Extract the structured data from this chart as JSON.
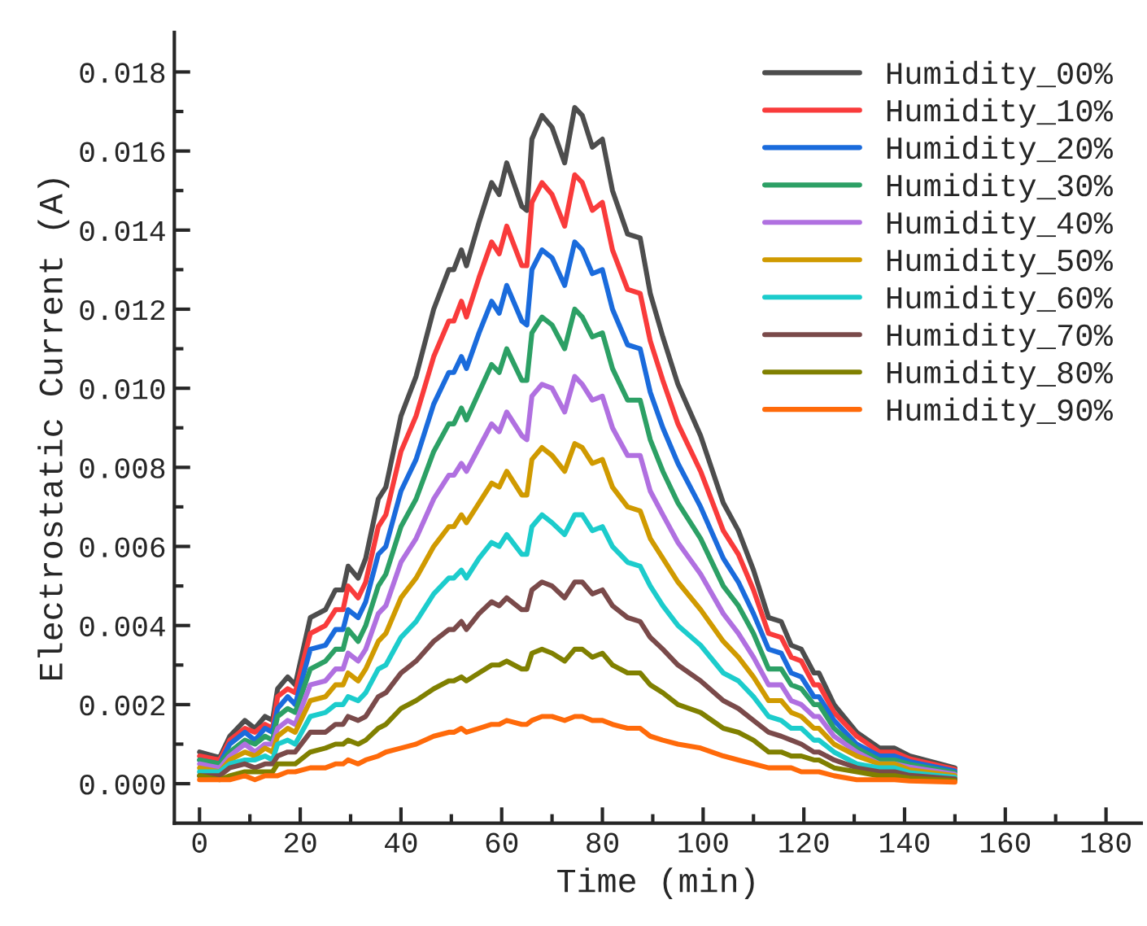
{
  "chart_data": {
    "type": "line",
    "xlabel": "Time (min)",
    "ylabel": "Electrostatic Current (A)",
    "x": [
      0,
      4,
      6,
      9,
      11,
      13,
      14.5,
      15.5,
      17.5,
      19,
      22,
      25,
      27,
      28.5,
      29.5,
      31.5,
      33,
      35.5,
      37,
      40,
      43,
      46.5,
      49.5,
      50.5,
      52,
      53,
      55.5,
      58,
      59.5,
      61,
      64,
      65,
      66,
      68,
      70,
      72.5,
      74.5,
      76,
      78,
      80,
      82,
      85,
      87.5,
      89.5,
      92,
      95,
      99.5,
      104,
      107,
      110,
      113,
      115.5,
      117.5,
      119.5,
      122,
      123,
      126,
      130.5,
      135,
      138,
      141,
      150
    ],
    "series": [
      {
        "name": "Humidity_00%",
        "color": "#4d4d4d",
        "values": [
          0.0008,
          0.00066,
          0.0012,
          0.0016,
          0.0014,
          0.0017,
          0.0016,
          0.0024,
          0.0027,
          0.0025,
          0.0042,
          0.0044,
          0.0049,
          0.0049,
          0.0055,
          0.0052,
          0.0057,
          0.0072,
          0.0075,
          0.0093,
          0.0103,
          0.012,
          0.013,
          0.013,
          0.0135,
          0.0131,
          0.0142,
          0.0152,
          0.0149,
          0.0157,
          0.0146,
          0.0145,
          0.0163,
          0.0169,
          0.0166,
          0.0157,
          0.0171,
          0.0169,
          0.0161,
          0.0163,
          0.015,
          0.0139,
          0.0138,
          0.0124,
          0.0113,
          0.0101,
          0.0088,
          0.0071,
          0.0064,
          0.0054,
          0.0042,
          0.0041,
          0.0035,
          0.0034,
          0.0028,
          0.0028,
          0.002,
          0.0013,
          0.0009,
          0.0009,
          0.0007,
          0.0004
        ]
      },
      {
        "name": "Humidity_10%",
        "color": "#f93b3b",
        "values": [
          0.0007,
          0.0006,
          0.0011,
          0.0014,
          0.0013,
          0.0015,
          0.0014,
          0.0022,
          0.0024,
          0.0023,
          0.0038,
          0.004,
          0.0044,
          0.0044,
          0.005,
          0.0047,
          0.0051,
          0.0065,
          0.0068,
          0.0084,
          0.0093,
          0.0108,
          0.0117,
          0.0117,
          0.0122,
          0.0118,
          0.0128,
          0.0137,
          0.0134,
          0.0141,
          0.0131,
          0.0131,
          0.0147,
          0.0152,
          0.0149,
          0.0141,
          0.0154,
          0.0152,
          0.0145,
          0.0147,
          0.0135,
          0.0125,
          0.0124,
          0.0112,
          0.0102,
          0.0091,
          0.0079,
          0.0064,
          0.0058,
          0.0049,
          0.0038,
          0.0037,
          0.0032,
          0.0031,
          0.0025,
          0.0025,
          0.0018,
          0.0012,
          0.0008,
          0.0008,
          0.00063,
          0.00036
        ]
      },
      {
        "name": "Humidity_20%",
        "color": "#1a6bdc",
        "values": [
          0.0006,
          0.0005,
          0.001,
          0.0013,
          0.0011,
          0.0014,
          0.0013,
          0.0019,
          0.0022,
          0.002,
          0.0034,
          0.0035,
          0.0039,
          0.0039,
          0.0044,
          0.0042,
          0.0046,
          0.0058,
          0.006,
          0.0074,
          0.0082,
          0.0096,
          0.0104,
          0.0104,
          0.0108,
          0.0105,
          0.0114,
          0.0122,
          0.0119,
          0.0126,
          0.0117,
          0.0116,
          0.013,
          0.0135,
          0.0133,
          0.0126,
          0.0137,
          0.0135,
          0.0129,
          0.013,
          0.012,
          0.0111,
          0.011,
          0.0099,
          0.009,
          0.0081,
          0.007,
          0.0057,
          0.0051,
          0.0043,
          0.0034,
          0.0033,
          0.0028,
          0.0027,
          0.0022,
          0.0022,
          0.0016,
          0.001,
          0.0007,
          0.0007,
          0.00056,
          0.00032
        ]
      },
      {
        "name": "Humidity_30%",
        "color": "#2ca065",
        "values": [
          0.0006,
          0.0005,
          0.0008,
          0.0011,
          0.001,
          0.0012,
          0.0011,
          0.0017,
          0.0019,
          0.0018,
          0.0029,
          0.0031,
          0.0034,
          0.0034,
          0.0039,
          0.0036,
          0.004,
          0.005,
          0.0053,
          0.0065,
          0.0072,
          0.0084,
          0.0091,
          0.0091,
          0.0095,
          0.0092,
          0.0099,
          0.0106,
          0.0104,
          0.011,
          0.0102,
          0.0102,
          0.0114,
          0.0118,
          0.0116,
          0.011,
          0.012,
          0.0118,
          0.0113,
          0.0114,
          0.0105,
          0.0097,
          0.0097,
          0.0087,
          0.0079,
          0.0071,
          0.0062,
          0.005,
          0.0045,
          0.0038,
          0.0029,
          0.0029,
          0.0025,
          0.0024,
          0.002,
          0.002,
          0.0014,
          0.0009,
          0.0006,
          0.0006,
          0.00049,
          0.00028
        ]
      },
      {
        "name": "Humidity_40%",
        "color": "#b070e0",
        "values": [
          0.0005,
          0.0004,
          0.0007,
          0.001,
          0.0008,
          0.001,
          0.001,
          0.0014,
          0.0016,
          0.0015,
          0.0025,
          0.0026,
          0.0029,
          0.0029,
          0.0033,
          0.0031,
          0.0034,
          0.0043,
          0.0045,
          0.0056,
          0.0062,
          0.0072,
          0.0078,
          0.0078,
          0.0081,
          0.0079,
          0.0085,
          0.0091,
          0.0089,
          0.0094,
          0.0088,
          0.0087,
          0.0098,
          0.0101,
          0.01,
          0.0094,
          0.0103,
          0.0101,
          0.0097,
          0.0098,
          0.009,
          0.0083,
          0.0083,
          0.0074,
          0.0068,
          0.0061,
          0.0053,
          0.0043,
          0.0038,
          0.0032,
          0.0025,
          0.0025,
          0.0021,
          0.002,
          0.0017,
          0.0017,
          0.0012,
          0.0008,
          0.0005,
          0.0005,
          0.00042,
          0.00024
        ]
      },
      {
        "name": "Humidity_50%",
        "color": "#d09a00",
        "values": [
          0.0004,
          0.0003,
          0.0006,
          0.0008,
          0.0007,
          0.0009,
          0.0008,
          0.0012,
          0.0014,
          0.0013,
          0.0021,
          0.0022,
          0.0025,
          0.0025,
          0.0028,
          0.0026,
          0.0029,
          0.0036,
          0.0038,
          0.0047,
          0.0052,
          0.006,
          0.0065,
          0.0065,
          0.0068,
          0.0066,
          0.0071,
          0.0076,
          0.0075,
          0.0079,
          0.0073,
          0.0073,
          0.0082,
          0.0085,
          0.0083,
          0.0079,
          0.0086,
          0.0085,
          0.0081,
          0.0082,
          0.0075,
          0.007,
          0.0069,
          0.0062,
          0.0057,
          0.0051,
          0.0044,
          0.0036,
          0.0032,
          0.0027,
          0.0021,
          0.0021,
          0.0018,
          0.0017,
          0.0014,
          0.0014,
          0.001,
          0.0007,
          0.0005,
          0.0005,
          0.00035,
          0.0002
        ]
      },
      {
        "name": "Humidity_60%",
        "color": "#1ccccc",
        "values": [
          0.0003,
          0.0003,
          0.0005,
          0.0006,
          0.0006,
          0.0007,
          0.0006,
          0.001,
          0.0011,
          0.001,
          0.0017,
          0.0018,
          0.002,
          0.002,
          0.0022,
          0.0021,
          0.0023,
          0.0029,
          0.003,
          0.0037,
          0.0041,
          0.0048,
          0.0052,
          0.0052,
          0.0054,
          0.0052,
          0.0057,
          0.0061,
          0.006,
          0.0063,
          0.0058,
          0.0058,
          0.0065,
          0.0068,
          0.0066,
          0.0063,
          0.0068,
          0.0068,
          0.0064,
          0.0065,
          0.006,
          0.0056,
          0.0055,
          0.005,
          0.0045,
          0.004,
          0.0035,
          0.0028,
          0.0026,
          0.0022,
          0.0017,
          0.0016,
          0.0014,
          0.0014,
          0.0011,
          0.0011,
          0.0008,
          0.0005,
          0.0004,
          0.0004,
          0.00028,
          0.00016
        ]
      },
      {
        "name": "Humidity_70%",
        "color": "#7a4a4a",
        "values": [
          0.0002,
          0.0002,
          0.0004,
          0.0005,
          0.0004,
          0.0005,
          0.0005,
          0.0007,
          0.0008,
          0.0008,
          0.0013,
          0.0013,
          0.0015,
          0.0015,
          0.0017,
          0.0016,
          0.0017,
          0.0022,
          0.0023,
          0.0028,
          0.0031,
          0.0036,
          0.0039,
          0.0039,
          0.0041,
          0.0039,
          0.0043,
          0.0046,
          0.0045,
          0.0047,
          0.0044,
          0.0044,
          0.0049,
          0.0051,
          0.005,
          0.0047,
          0.0051,
          0.0051,
          0.0048,
          0.0049,
          0.0045,
          0.0042,
          0.0041,
          0.0037,
          0.0034,
          0.003,
          0.0026,
          0.0021,
          0.0019,
          0.0016,
          0.0013,
          0.0012,
          0.0011,
          0.001,
          0.0008,
          0.0008,
          0.0006,
          0.0004,
          0.0003,
          0.0003,
          0.00021,
          0.00012
        ]
      },
      {
        "name": "Humidity_80%",
        "color": "#808000",
        "values": [
          0.0002,
          0.0001,
          0.0002,
          0.0003,
          0.0003,
          0.0003,
          0.0003,
          0.0005,
          0.0005,
          0.0005,
          0.0008,
          0.0009,
          0.001,
          0.001,
          0.0011,
          0.001,
          0.0011,
          0.0014,
          0.0015,
          0.0019,
          0.0021,
          0.0024,
          0.0026,
          0.0026,
          0.0027,
          0.0026,
          0.0028,
          0.003,
          0.003,
          0.0031,
          0.0029,
          0.0029,
          0.0033,
          0.0034,
          0.0033,
          0.0031,
          0.0034,
          0.0034,
          0.0032,
          0.0033,
          0.003,
          0.0028,
          0.0028,
          0.0025,
          0.0023,
          0.002,
          0.0018,
          0.0014,
          0.0013,
          0.0011,
          0.0008,
          0.0008,
          0.0007,
          0.0007,
          0.0006,
          0.0006,
          0.0004,
          0.0003,
          0.0002,
          0.0002,
          0.00014,
          8e-05
        ]
      },
      {
        "name": "Humidity_90%",
        "color": "#ff6a0a",
        "values": [
          0.0001,
          0.0001,
          0.0001,
          0.0002,
          0.0001,
          0.0002,
          0.0002,
          0.0002,
          0.0003,
          0.0003,
          0.0004,
          0.0004,
          0.0005,
          0.0005,
          0.0006,
          0.0005,
          0.0006,
          0.0007,
          0.0008,
          0.0009,
          0.001,
          0.0012,
          0.0013,
          0.0013,
          0.0014,
          0.0013,
          0.0014,
          0.0015,
          0.0015,
          0.0016,
          0.0015,
          0.0015,
          0.0016,
          0.0017,
          0.0017,
          0.0016,
          0.0017,
          0.0017,
          0.0016,
          0.0016,
          0.0015,
          0.0014,
          0.0014,
          0.0012,
          0.0011,
          0.001,
          0.0009,
          0.0007,
          0.0006,
          0.0005,
          0.0004,
          0.0004,
          0.0004,
          0.0003,
          0.0003,
          0.0003,
          0.0002,
          0.0001,
          0.0001,
          0.0001,
          7e-05,
          4e-05
        ]
      }
    ],
    "xlim": [
      -5,
      187
    ],
    "ylim": [
      -0.001,
      0.019
    ],
    "xticks": [
      0,
      {
        "value": 10,
        "label": null
      },
      20,
      {
        "value": 30,
        "label": null
      },
      40,
      {
        "value": 50,
        "label": null
      },
      60,
      {
        "value": 70,
        "label": null
      },
      80,
      {
        "value": 90,
        "label": null
      },
      100,
      {
        "value": 110,
        "label": null
      },
      120,
      {
        "value": 130,
        "label": null
      },
      140,
      {
        "value": 150,
        "label": null
      },
      160,
      {
        "value": 170,
        "label": null
      },
      180
    ],
    "yticks": [
      {
        "value": 0,
        "label": "0.000"
      },
      {
        "value": 0.001,
        "label": null
      },
      {
        "value": 0.002,
        "label": "0.002"
      },
      {
        "value": 0.003,
        "label": null
      },
      {
        "value": 0.004,
        "label": "0.004"
      },
      {
        "value": 0.005,
        "label": null
      },
      {
        "value": 0.006,
        "label": "0.006"
      },
      {
        "value": 0.007,
        "label": null
      },
      {
        "value": 0.008,
        "label": "0.008"
      },
      {
        "value": 0.009,
        "label": null
      },
      {
        "value": 0.01,
        "label": "0.010"
      },
      {
        "value": 0.011,
        "label": null
      },
      {
        "value": 0.012,
        "label": "0.012"
      },
      {
        "value": 0.013,
        "label": null
      },
      {
        "value": 0.014,
        "label": "0.014"
      },
      {
        "value": 0.015,
        "label": null
      },
      {
        "value": 0.016,
        "label": "0.016"
      },
      {
        "value": 0.017,
        "label": null
      },
      {
        "value": 0.018,
        "label": "0.018"
      }
    ],
    "grid": false,
    "legend": "top right",
    "marker": "none",
    "line_style": "solid"
  }
}
